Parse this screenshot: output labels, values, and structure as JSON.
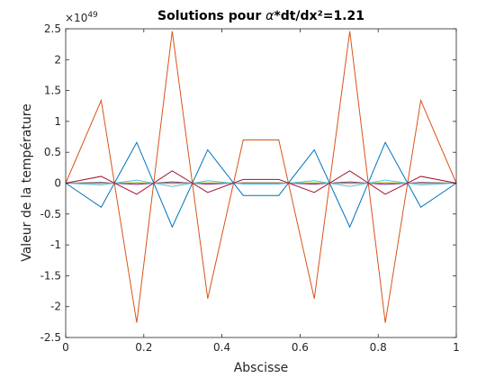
{
  "chart_data": {
    "type": "line",
    "title_prefix": "Solutions pour ",
    "title_symbol": "α",
    "title_suffix": "*dt/dx²=1.21",
    "xlabel": "Abscisse",
    "ylabel": "Valeur de la température",
    "y_multiplier_base": "×10",
    "y_multiplier_exp": "49",
    "xlim": [
      0,
      1
    ],
    "ylim": [
      -2.5,
      2.5
    ],
    "x_ticks": [
      0,
      0.2,
      0.4,
      0.6,
      0.8,
      1
    ],
    "x_tick_labels": [
      "0",
      "0.2",
      "0.4",
      "0.6",
      "0.8",
      "1"
    ],
    "y_ticks": [
      -2.5,
      -2,
      -1.5,
      -1,
      -0.5,
      0,
      0.5,
      1,
      1.5,
      2,
      2.5
    ],
    "y_tick_labels": [
      "-2.5",
      "-2",
      "-1.5",
      "-1",
      "-0.5",
      "0",
      "0.5",
      "1",
      "1.5",
      "2",
      "2.5"
    ],
    "grid": false,
    "x": [
      0,
      0.0909,
      0.1818,
      0.2727,
      0.3636,
      0.4545,
      0.5455,
      0.6364,
      0.7273,
      0.8182,
      0.9091,
      1
    ],
    "series": [
      {
        "color": "#0072BD",
        "values": [
          0,
          -0.39,
          0.66,
          -0.71,
          0.54,
          -0.2,
          -0.2,
          0.54,
          -0.71,
          0.66,
          -0.39,
          0
        ]
      },
      {
        "color": "#D95319",
        "values": [
          0,
          1.34,
          -2.26,
          2.46,
          -1.87,
          0.7,
          0.7,
          -1.87,
          2.46,
          -2.26,
          1.34,
          0
        ]
      },
      {
        "color": "#EDB120",
        "values": [
          0,
          -0.004,
          0.007,
          -0.008,
          0.006,
          -0.002,
          -0.002,
          0.006,
          -0.008,
          0.007,
          -0.004,
          0
        ]
      },
      {
        "color": "#7E2F8E",
        "values": [
          0,
          0.01,
          -0.02,
          0.02,
          -0.016,
          0.006,
          0.006,
          -0.016,
          0.02,
          -0.02,
          0.01,
          0
        ]
      },
      {
        "color": "#77AC30",
        "values": [
          0,
          -0.001,
          0.002,
          -0.002,
          0.0015,
          -0.0006,
          -0.0006,
          0.0015,
          -0.002,
          0.002,
          -0.001,
          0
        ]
      },
      {
        "color": "#4DBEEE",
        "values": [
          0,
          -0.03,
          0.05,
          -0.055,
          0.04,
          -0.015,
          -0.015,
          0.04,
          -0.055,
          0.05,
          -0.03,
          0
        ]
      },
      {
        "color": "#A2142F",
        "values": [
          0,
          0.11,
          -0.18,
          0.2,
          -0.15,
          0.06,
          0.06,
          -0.15,
          0.2,
          -0.18,
          0.11,
          0
        ]
      }
    ]
  }
}
